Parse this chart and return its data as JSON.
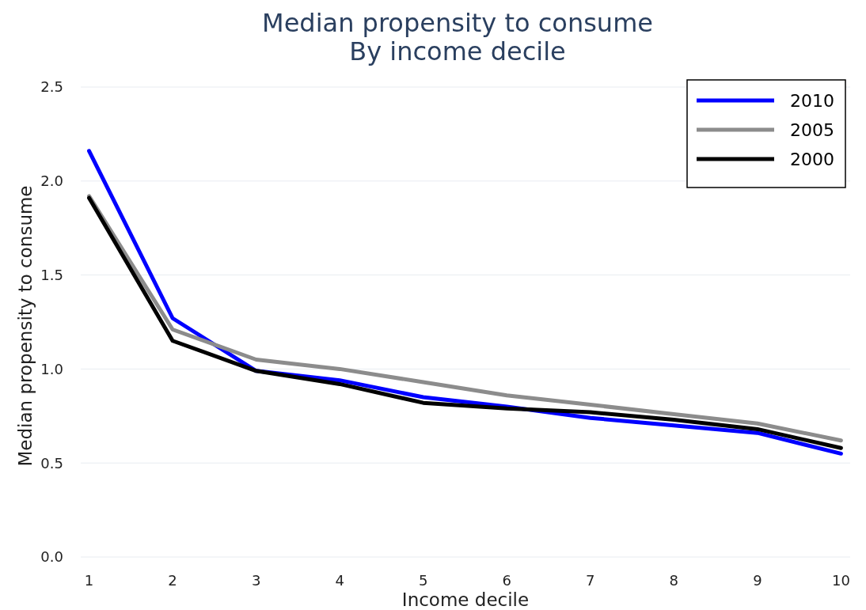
{
  "chart_data": {
    "type": "line",
    "title": "Median propensity to consume",
    "subtitle": "By income decile",
    "xlabel": "Income decile",
    "ylabel": "Median propensity to consume",
    "x": [
      1,
      2,
      3,
      4,
      5,
      6,
      7,
      8,
      9,
      10
    ],
    "series": [
      {
        "name": "2010",
        "color": "#0000ff",
        "values": [
          2.16,
          1.27,
          0.99,
          0.94,
          0.85,
          0.8,
          0.74,
          0.7,
          0.66,
          0.55
        ]
      },
      {
        "name": "2005",
        "color": "#8c8c8c",
        "values": [
          1.92,
          1.21,
          1.05,
          1.0,
          0.93,
          0.86,
          0.81,
          0.76,
          0.71,
          0.62
        ]
      },
      {
        "name": "2000",
        "color": "#000000",
        "values": [
          1.91,
          1.15,
          0.99,
          0.92,
          0.82,
          0.79,
          0.77,
          0.73,
          0.68,
          0.58
        ]
      }
    ],
    "xlim": [
      0.9,
      10.11
    ],
    "xticks": [
      1,
      2,
      3,
      4,
      5,
      6,
      7,
      8,
      9,
      10
    ],
    "ylim": [
      0,
      2.5
    ],
    "yticks": [
      {
        "value": 0,
        "label": "0.0"
      },
      {
        "value": 0.5,
        "label": "0.5"
      },
      {
        "value": 1,
        "label": "1.0"
      },
      {
        "value": 1.5,
        "label": "1.5"
      },
      {
        "value": 2,
        "label": "2.0"
      },
      {
        "value": 2.5,
        "label": "2.5"
      }
    ],
    "grid": "y",
    "legend": "top right",
    "line_style": "solid",
    "marker": "none"
  }
}
